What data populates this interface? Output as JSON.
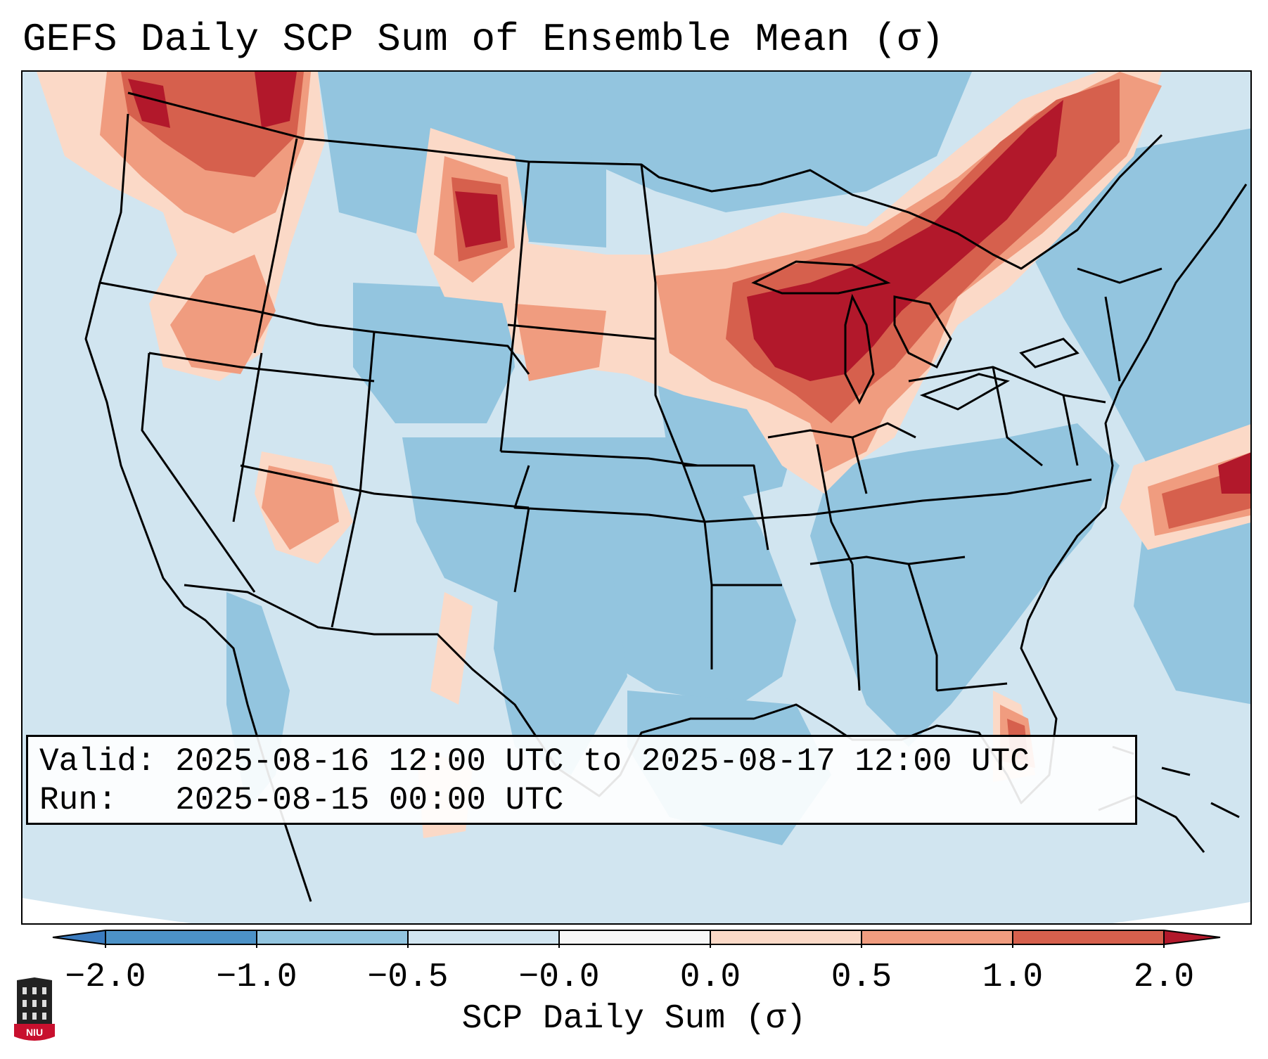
{
  "title": "GEFS Daily SCP Sum of Ensemble Mean (σ)",
  "info": {
    "valid_label": "Valid:",
    "valid_value": "2025-08-16 12:00 UTC to 2025-08-17 12:00 UTC",
    "run_label": "Run:",
    "run_value": "2025-08-15 00:00 UTC"
  },
  "colorbar": {
    "label": "SCP Daily Sum (σ)",
    "ticks": [
      "−2.0",
      "−1.0",
      "−0.5",
      "−0.0",
      "0.0",
      "0.5",
      "1.0",
      "2.0"
    ],
    "colors": {
      "below_min": "#3a7bbf",
      "c1": "#4c92c7",
      "c2": "#93c5df",
      "c3": "#d1e5f0",
      "c4": "#f7f7f7",
      "c5": "#fbd9c7",
      "c6": "#f09c7f",
      "c7": "#d6604d",
      "above_max": "#b2182b"
    }
  },
  "logo": {
    "text": "NIU",
    "name": "niu-logo"
  }
}
